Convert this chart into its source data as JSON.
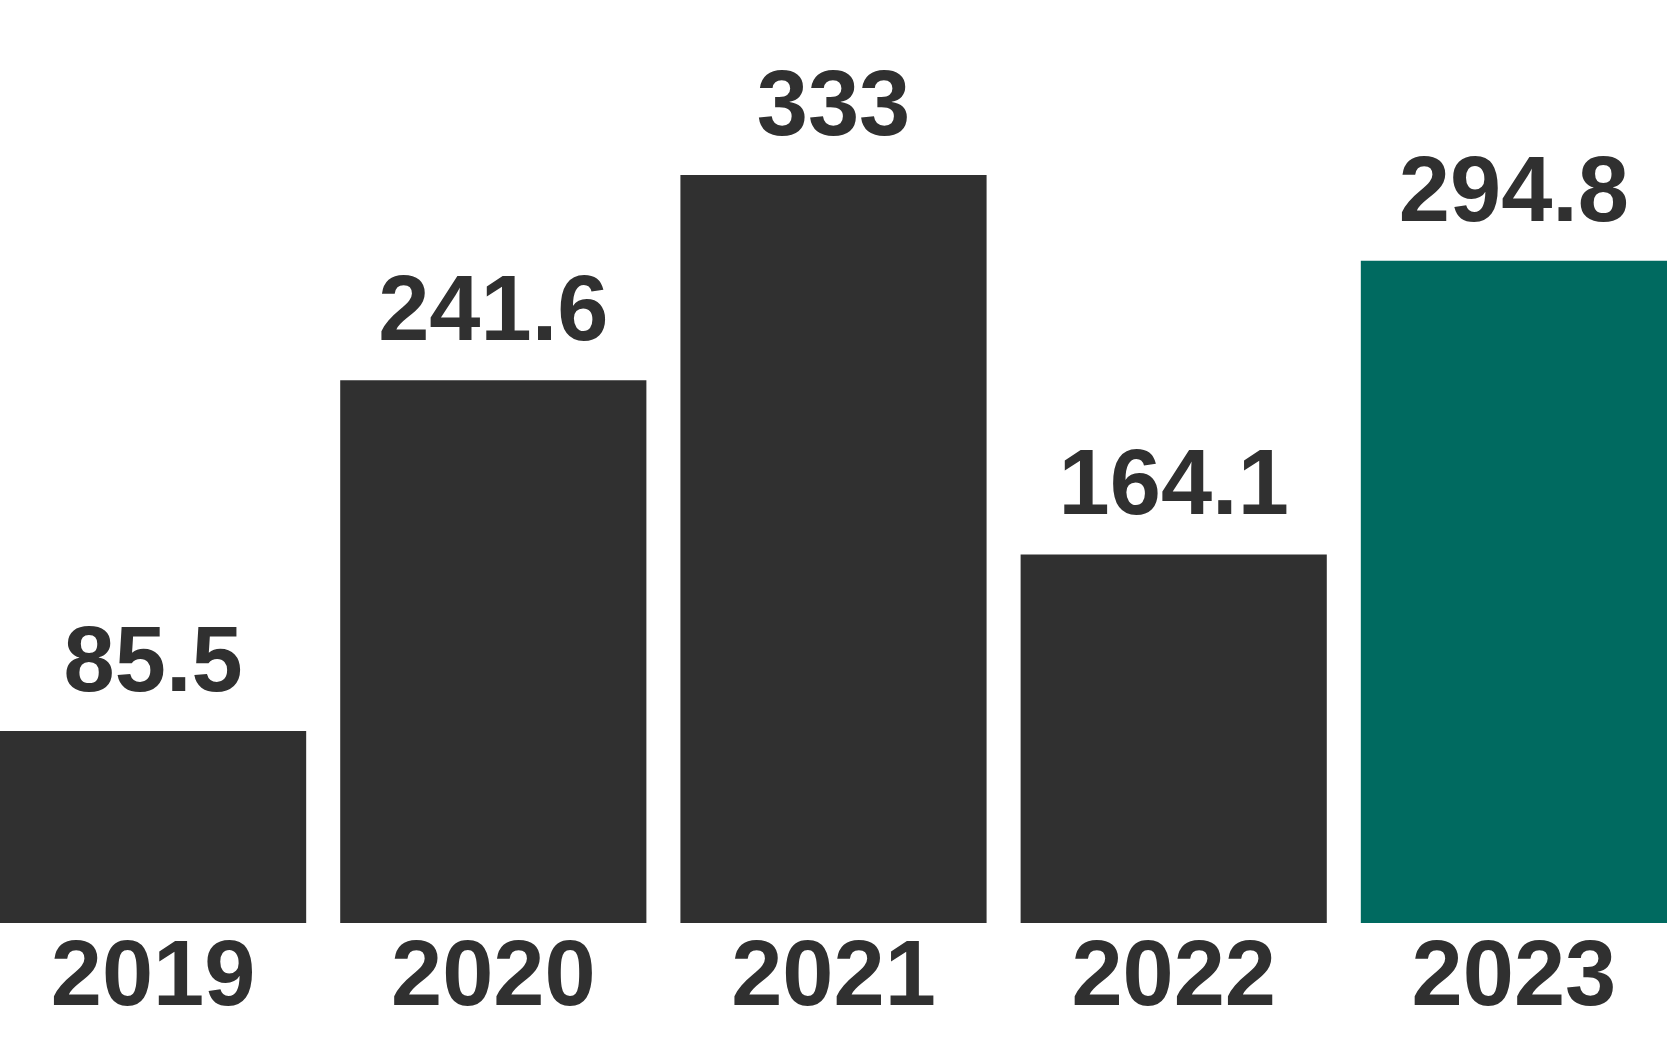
{
  "chart_data": {
    "type": "bar",
    "categories": [
      "2019",
      "2020",
      "2021",
      "2022",
      "2023"
    ],
    "values": [
      85.5,
      241.6,
      333,
      164.1,
      294.8
    ],
    "colors": [
      "#303030",
      "#303030",
      "#303030",
      "#303030",
      "#006a60"
    ],
    "data_labels": true,
    "grid": false,
    "legend": false
  }
}
